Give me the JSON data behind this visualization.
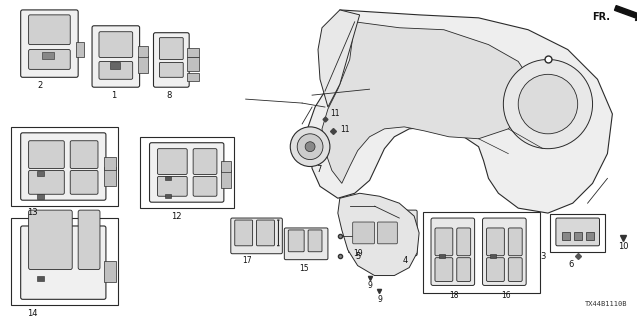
{
  "bg_color": "#ffffff",
  "diagram_code": "TX44B1110B",
  "fr_label": "FR.",
  "line_color": "#2a2a2a",
  "fill_light": "#e8e8e8",
  "fill_med": "#c8c8c8",
  "fill_dark": "#888888"
}
